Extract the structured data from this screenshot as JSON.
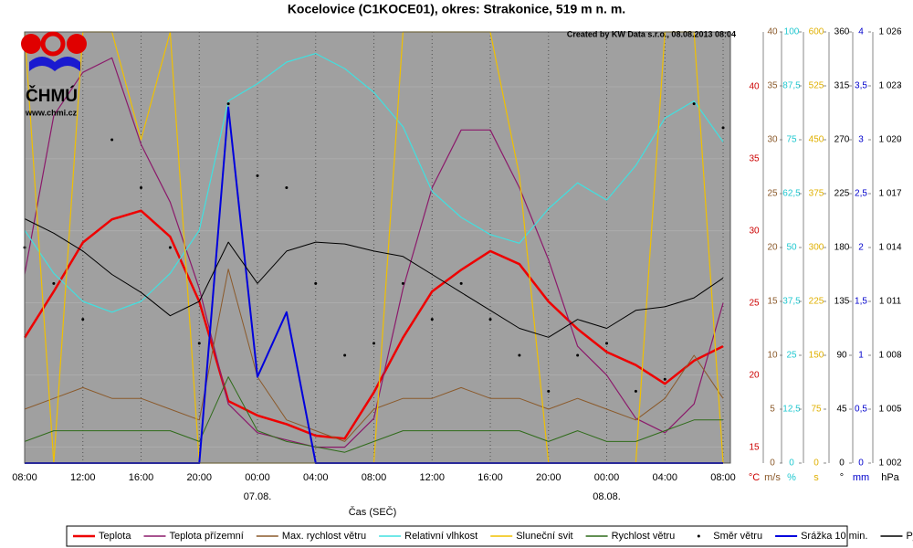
{
  "chart_data": {
    "type": "line",
    "title": "Kocelovice (C1KOCE01), okres: Strakonice, 519 m n. m.",
    "credit": "Created by KW Data s.r.o., 08.08.2013 08:04",
    "logo_text": "ČHMÚ",
    "logo_url": "www.chmi.cz",
    "x_label": "Čas (SEČ)",
    "x": [
      0,
      2,
      4,
      6,
      8,
      10,
      12,
      14,
      16,
      18,
      20,
      22,
      24,
      26,
      28,
      30,
      32,
      34,
      36,
      38,
      40,
      42,
      44,
      46,
      48
    ],
    "xlim": [
      0,
      48.5
    ],
    "xticks": [
      {
        "value": 0,
        "label": "08:00"
      },
      {
        "value": 4,
        "label": "12:00"
      },
      {
        "value": 8,
        "label": "16:00"
      },
      {
        "value": 12,
        "label": "20:00"
      },
      {
        "value": 16,
        "label": "00:00"
      },
      {
        "value": 20,
        "label": "04:00"
      },
      {
        "value": 24,
        "label": "08:00"
      },
      {
        "value": 28,
        "label": "12:00"
      },
      {
        "value": 32,
        "label": "16:00"
      },
      {
        "value": 36,
        "label": "20:00"
      },
      {
        "value": 40,
        "label": "00:00"
      },
      {
        "value": 44,
        "label": "04:00"
      },
      {
        "value": 48,
        "label": "08:00"
      }
    ],
    "date_labels": [
      {
        "value": 16,
        "label": "07.08."
      },
      {
        "value": 40,
        "label": "08.08."
      }
    ],
    "grid": true,
    "axes": [
      {
        "unit": "°C",
        "color": "#cc0000",
        "ylim": [
          13.9,
          43.8
        ],
        "yticks": [
          15,
          20,
          25,
          30,
          35,
          40
        ]
      },
      {
        "unit": "m/s",
        "color": "#8b5a2b",
        "ylim": [
          0,
          40
        ],
        "yticks": [
          0,
          5,
          10,
          15,
          20,
          25,
          30,
          35,
          40
        ]
      },
      {
        "unit": "%",
        "color": "#20c8d0",
        "ylim": [
          0,
          100
        ],
        "yticks": [
          0,
          {
            "value": 12.5,
            "label": "12,5"
          },
          25,
          {
            "value": 37.5,
            "label": "37,5"
          },
          50,
          {
            "value": 62.5,
            "label": "62,5"
          },
          75,
          {
            "value": 87.5,
            "label": "87,5"
          },
          100
        ]
      },
      {
        "unit": "s",
        "color": "#e0b000",
        "ylim": [
          0,
          600
        ],
        "yticks": [
          0,
          75,
          150,
          225,
          300,
          375,
          450,
          525,
          600
        ]
      },
      {
        "unit": "°",
        "color": "#000000",
        "ylim": [
          0,
          360
        ],
        "yticks": [
          0,
          45,
          90,
          135,
          180,
          225,
          270,
          315,
          360
        ]
      },
      {
        "unit": "mm",
        "color": "#0000cc",
        "ylim": [
          0,
          4
        ],
        "yticks": [
          0,
          {
            "value": 0.5,
            "label": "0,5"
          },
          1,
          {
            "value": 1.5,
            "label": "1,5"
          },
          2,
          {
            "value": 2.5,
            "label": "2,5"
          },
          3,
          {
            "value": 3.5,
            "label": "3,5"
          },
          4
        ]
      },
      {
        "unit": "hPa",
        "color": "#000000",
        "ylim": [
          1002,
          1026
        ],
        "yticks": [
          {
            "value": 1002,
            "label": "1 002"
          },
          {
            "value": 1005,
            "label": "1 005"
          },
          {
            "value": 1008,
            "label": "1 008"
          },
          {
            "value": 1011,
            "label": "1 011"
          },
          {
            "value": 1014,
            "label": "1 014"
          },
          {
            "value": 1017,
            "label": "1 017"
          },
          {
            "value": 1020,
            "label": "1 020"
          },
          {
            "value": 1023,
            "label": "1 023"
          },
          {
            "value": 1026,
            "label": "1 026"
          }
        ]
      }
    ],
    "series": [
      {
        "name": "Teplota",
        "color": "#ee0000",
        "axis": 0,
        "style": "line",
        "width": 2.5,
        "values": [
          22.6,
          25.8,
          29.2,
          30.8,
          31.4,
          29.6,
          25.1,
          18.2,
          17.2,
          16.6,
          15.8,
          15.6,
          18.8,
          22.6,
          25.8,
          27.3,
          28.6,
          27.7,
          25.1,
          23.2,
          21.6,
          20.7,
          19.4,
          21,
          22
        ]
      },
      {
        "name": "Teplota přízemní",
        "color": "#8b1a6b",
        "axis": 0,
        "style": "line",
        "width": 1.2,
        "values": [
          27,
          38,
          41,
          42,
          36,
          32,
          26,
          18,
          16,
          15.5,
          15,
          15,
          17,
          26,
          33,
          37,
          37,
          33,
          28,
          22,
          20,
          17,
          16,
          18,
          25
        ]
      },
      {
        "name": "Max. rychlost větru",
        "color": "#8b5a2b",
        "axis": 1,
        "style": "line",
        "width": 1,
        "values": [
          5,
          6,
          7,
          6,
          6,
          5,
          4,
          18,
          8,
          4,
          3,
          2,
          5,
          6,
          6,
          7,
          6,
          6,
          5,
          6,
          5,
          4,
          6,
          10,
          6
        ]
      },
      {
        "name": "Relativní vlhkost",
        "color": "#40e0e0",
        "axis": 2,
        "style": "line",
        "width": 1.2,
        "values": [
          54,
          44,
          37.5,
          35,
          37.5,
          44,
          54,
          84,
          88,
          93,
          95,
          91.5,
          86,
          78,
          63,
          57,
          53,
          51,
          59,
          65,
          61,
          69,
          80,
          84,
          74.5
        ]
      },
      {
        "name": "Sluneční svit",
        "color": "#f0c000",
        "axis": 3,
        "style": "line",
        "width": 1.2,
        "values": [
          600,
          0,
          600,
          600,
          450,
          600,
          0,
          0,
          0,
          0,
          0,
          0,
          0,
          600,
          600,
          600,
          600,
          400,
          0,
          0,
          0,
          0,
          600,
          600,
          0
        ]
      },
      {
        "name": "Rychlost větru",
        "color": "#2f6b1a",
        "axis": 1,
        "style": "line",
        "width": 1,
        "values": [
          2,
          3,
          3,
          3,
          3,
          3,
          2,
          8,
          3,
          2,
          1.5,
          1,
          2,
          3,
          3,
          3,
          3,
          3,
          2,
          3,
          2,
          2,
          3,
          4,
          4
        ]
      },
      {
        "name": "Směr větru",
        "color": "#000000",
        "axis": 4,
        "style": "dots",
        "width": 1,
        "values": [
          180,
          150,
          120,
          270,
          230,
          180,
          100,
          300,
          240,
          230,
          150,
          90,
          100,
          150,
          120,
          150,
          120,
          90,
          60,
          90,
          100,
          60,
          70,
          300,
          280
        ]
      },
      {
        "name": "Srážka 10 min.",
        "color": "#0000dd",
        "axis": 5,
        "style": "line",
        "width": 2,
        "values": [
          0,
          0,
          0,
          0,
          0,
          0,
          0,
          3.3,
          0.8,
          1.4,
          0,
          0,
          0,
          0,
          0,
          0,
          0,
          0,
          0,
          0,
          0,
          0,
          0,
          0,
          0
        ]
      },
      {
        "name": "P_hm",
        "color": "#000000",
        "axis": 6,
        "style": "line",
        "width": 1,
        "values": [
          1015.6,
          1014.8,
          1013.8,
          1012.5,
          1011.5,
          1010.2,
          1011,
          1014.3,
          1012,
          1013.8,
          1014.3,
          1014.2,
          1013.8,
          1013.5,
          1012.5,
          1011.5,
          1010.5,
          1009.5,
          1009,
          1010,
          1009.5,
          1010.5,
          1010.7,
          1011.2,
          1012.3
        ]
      }
    ]
  }
}
